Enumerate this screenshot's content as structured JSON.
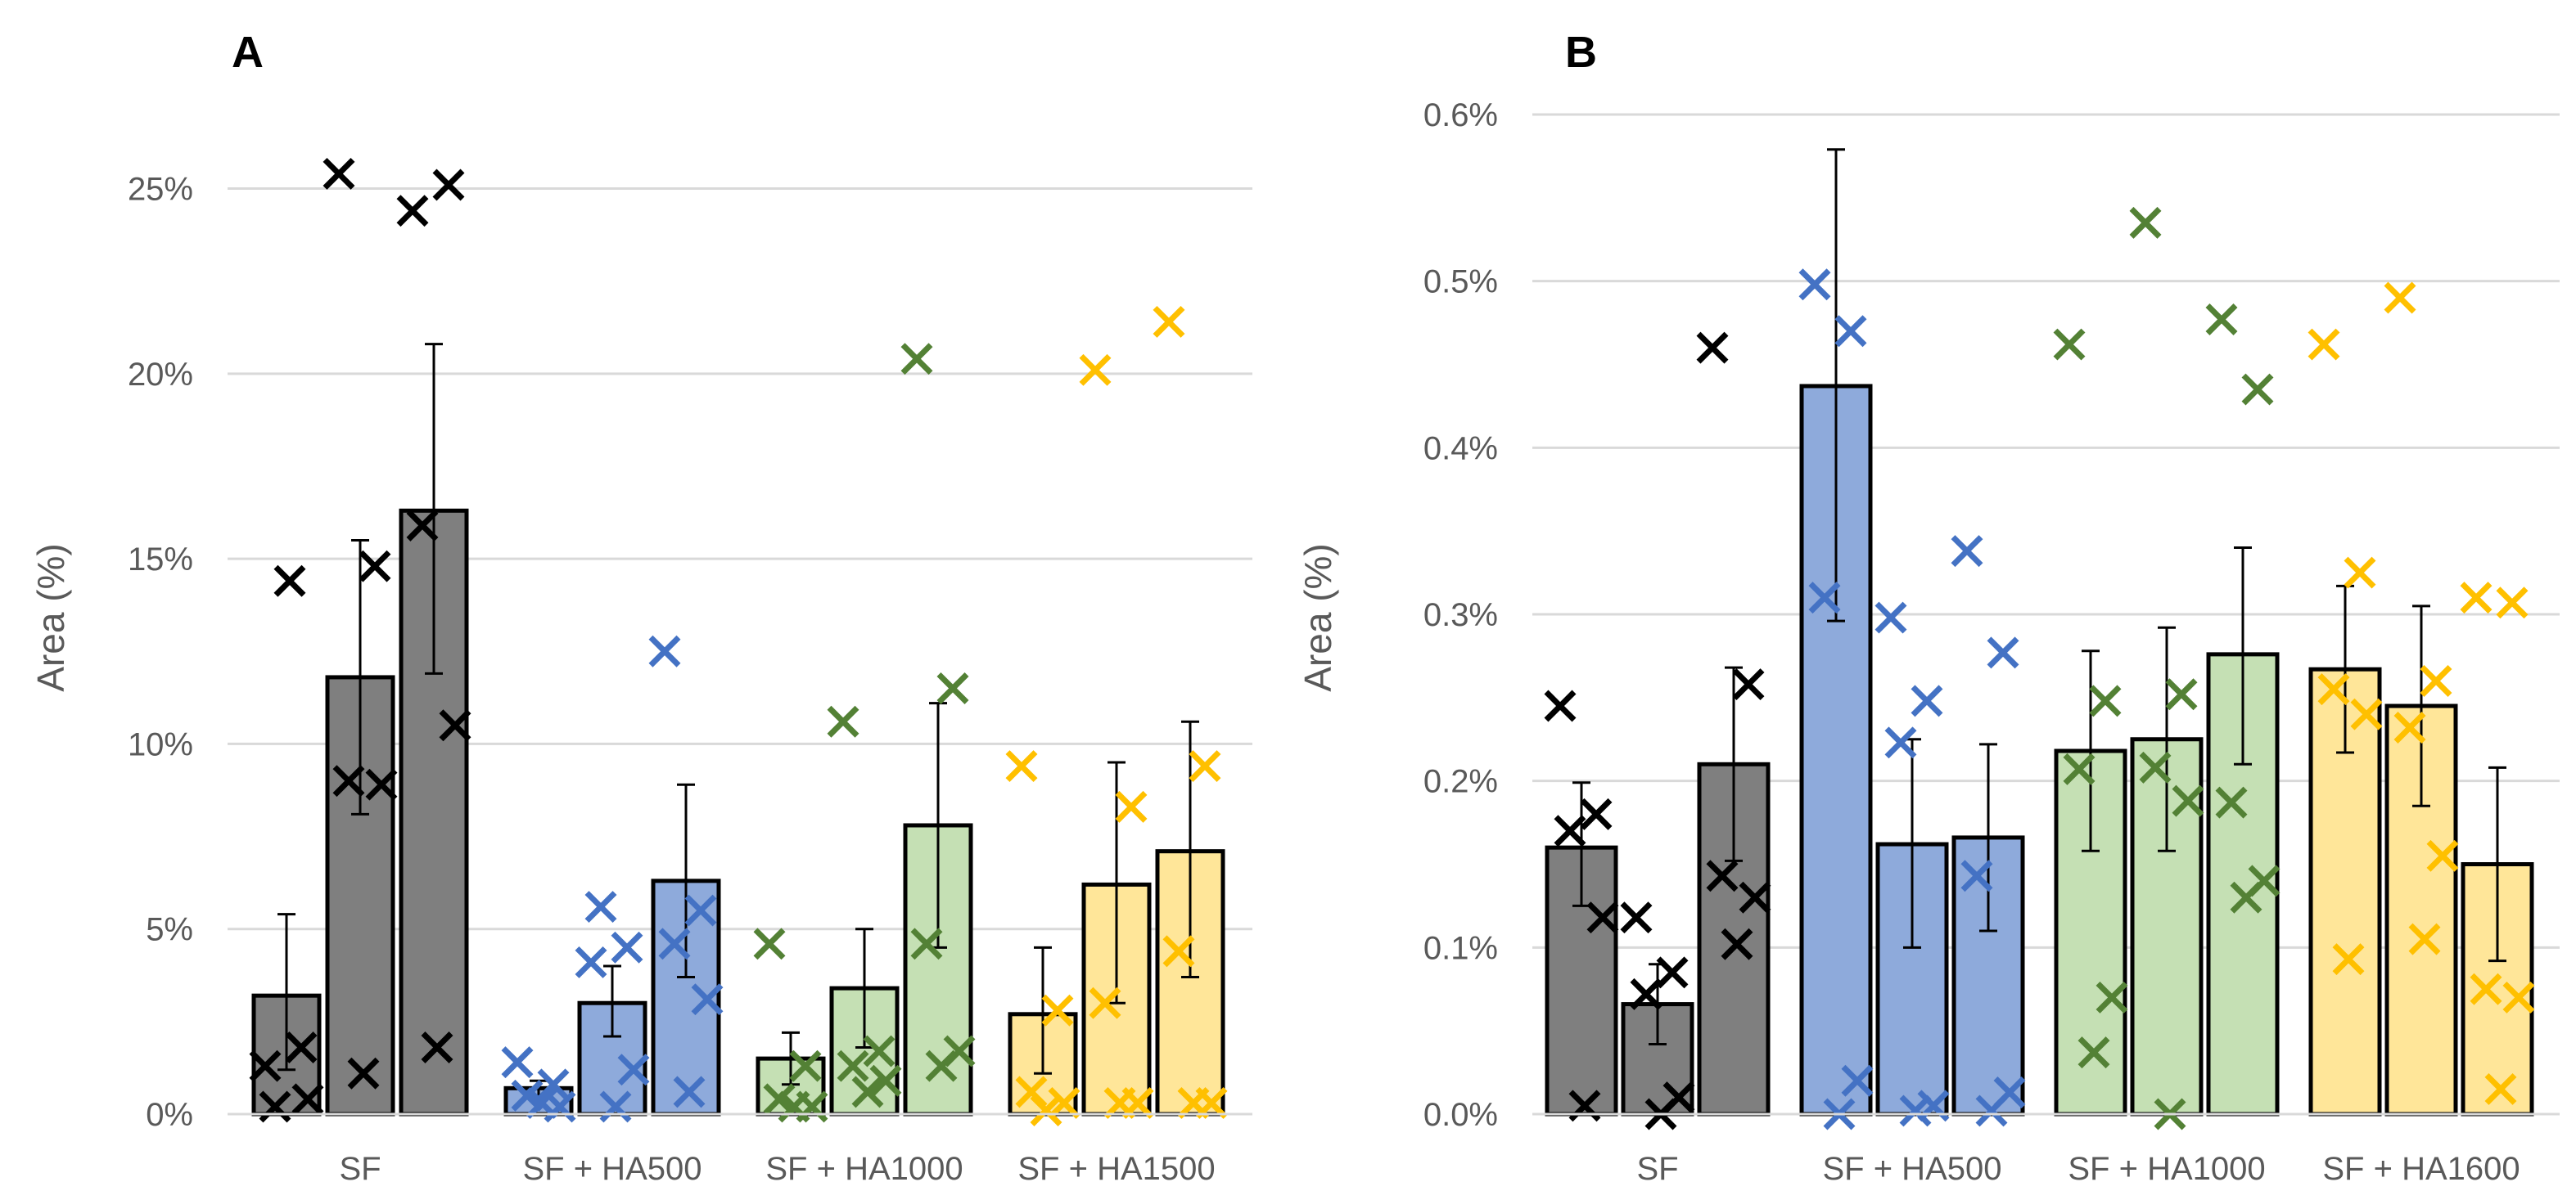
{
  "chart_data": [
    {
      "panel": "A",
      "type": "bar",
      "title": "",
      "ylabel": "Area (%)",
      "xlabel": "",
      "ylim": [
        0,
        27
      ],
      "yticks": [
        0,
        5,
        10,
        15,
        20,
        25
      ],
      "ytick_labels": [
        "0%",
        "5%",
        "10%",
        "15%",
        "20%",
        "25%"
      ],
      "grid": true,
      "categories": [
        "SF",
        "SF + HA500",
        "SF + HA1000",
        "SF + HA1500"
      ],
      "groups": [
        {
          "category": "SF",
          "color": "#7f7f7f",
          "marker_color": "#000000",
          "bars": [
            {
              "value": 3.2,
              "err_low": 1.2,
              "err_high": 5.4,
              "points": [
                1.3,
                1.8,
                0.2,
                0.4,
                14.4
              ]
            },
            {
              "value": 11.8,
              "err_low": 8.1,
              "err_high": 15.5,
              "points": [
                25.4,
                14.8,
                9.0,
                8.9,
                1.1
              ]
            },
            {
              "value": 16.3,
              "err_low": 11.9,
              "err_high": 20.8,
              "points": [
                24.4,
                25.1,
                15.9,
                10.5,
                1.8
              ]
            }
          ]
        },
        {
          "category": "SF + HA500",
          "color": "#8eaadb",
          "marker_color": "#4472c4",
          "bars": [
            {
              "value": 0.7,
              "err_low": 0.5,
              "err_high": 0.9,
              "points": [
                1.4,
                0.8,
                0.5,
                0.2,
                0.3
              ]
            },
            {
              "value": 3.0,
              "err_low": 2.1,
              "err_high": 4.0,
              "points": [
                4.1,
                4.5,
                5.6,
                1.2,
                0.2
              ]
            },
            {
              "value": 6.3,
              "err_low": 3.7,
              "err_high": 8.9,
              "points": [
                12.5,
                5.5,
                4.6,
                3.1,
                0.6
              ]
            }
          ]
        },
        {
          "category": "SF + HA1000",
          "color": "#c5e0b4",
          "marker_color": "#538135",
          "bars": [
            {
              "value": 1.5,
              "err_low": 0.8,
              "err_high": 2.2,
              "points": [
                4.6,
                1.3,
                0.4,
                0.2,
                0.2
              ]
            },
            {
              "value": 3.4,
              "err_low": 1.8,
              "err_high": 5.0,
              "points": [
                10.6,
                1.7,
                1.3,
                0.9,
                0.6
              ]
            },
            {
              "value": 7.8,
              "err_low": 4.5,
              "err_high": 11.1,
              "points": [
                20.4,
                11.5,
                4.6,
                1.7,
                1.3
              ]
            }
          ]
        },
        {
          "category": "SF + HA1500",
          "color": "#ffe699",
          "marker_color": "#ffc000",
          "bars": [
            {
              "value": 2.7,
              "err_low": 1.1,
              "err_high": 4.5,
              "points": [
                9.4,
                2.8,
                0.6,
                0.3,
                0.1
              ]
            },
            {
              "value": 6.2,
              "err_low": 3.0,
              "err_high": 9.5,
              "points": [
                20.1,
                8.3,
                3.0,
                0.3,
                0.3
              ]
            },
            {
              "value": 7.1,
              "err_low": 3.7,
              "err_high": 10.6,
              "points": [
                21.4,
                9.4,
                4.4,
                0.3,
                0.3
              ]
            }
          ]
        }
      ]
    },
    {
      "panel": "B",
      "type": "bar",
      "title": "",
      "ylabel": "Area (%)",
      "xlabel": "",
      "ylim": [
        0,
        0.6
      ],
      "yticks": [
        0,
        0.1,
        0.2,
        0.3,
        0.4,
        0.5,
        0.6
      ],
      "ytick_labels": [
        "0.0%",
        "0.1%",
        "0.2%",
        "0.3%",
        "0.4%",
        "0.5%",
        "0.6%"
      ],
      "grid": true,
      "categories": [
        "SF",
        "SF + HA500",
        "SF + HA1000",
        "SF + HA1600"
      ],
      "groups": [
        {
          "category": "SF",
          "color": "#7f7f7f",
          "marker_color": "#000000",
          "bars": [
            {
              "value": 0.16,
              "err_low": 0.125,
              "err_high": 0.199,
              "points": [
                0.245,
                0.18,
                0.17,
                0.118,
                0.005
              ]
            },
            {
              "value": 0.066,
              "err_low": 0.042,
              "err_high": 0.09,
              "points": [
                0.118,
                0.085,
                0.072,
                0.01,
                0.0
              ]
            },
            {
              "value": 0.21,
              "err_low": 0.152,
              "err_high": 0.268,
              "points": [
                0.46,
                0.258,
                0.143,
                0.13,
                0.102
              ]
            }
          ]
        },
        {
          "category": "SF + HA500",
          "color": "#8eaadb",
          "marker_color": "#4472c4",
          "bars": [
            {
              "value": 0.437,
              "err_low": 0.296,
              "err_high": 0.579,
              "points": [
                0.498,
                0.47,
                0.31,
                0.02,
                0.0
              ]
            },
            {
              "value": 0.162,
              "err_low": 0.1,
              "err_high": 0.225,
              "points": [
                0.298,
                0.248,
                0.223,
                0.005,
                0.002
              ]
            },
            {
              "value": 0.166,
              "err_low": 0.11,
              "err_high": 0.222,
              "points": [
                0.338,
                0.277,
                0.143,
                0.013,
                0.002
              ]
            }
          ]
        },
        {
          "category": "SF + HA1000",
          "color": "#c5e0b4",
          "marker_color": "#538135",
          "bars": [
            {
              "value": 0.218,
              "err_low": 0.158,
              "err_high": 0.278,
              "points": [
                0.462,
                0.248,
                0.207,
                0.07,
                0.037
              ]
            },
            {
              "value": 0.225,
              "err_low": 0.158,
              "err_high": 0.292,
              "points": [
                0.535,
                0.252,
                0.208,
                0.188,
                0.0
              ]
            },
            {
              "value": 0.276,
              "err_low": 0.21,
              "err_high": 0.34,
              "points": [
                0.477,
                0.435,
                0.187,
                0.14,
                0.13
              ]
            }
          ]
        },
        {
          "category": "SF + HA1600",
          "color": "#ffe699",
          "marker_color": "#ffc000",
          "bars": [
            {
              "value": 0.267,
              "err_low": 0.217,
              "err_high": 0.317,
              "points": [
                0.462,
                0.325,
                0.255,
                0.24,
                0.093
              ]
            },
            {
              "value": 0.245,
              "err_low": 0.185,
              "err_high": 0.305,
              "points": [
                0.49,
                0.26,
                0.232,
                0.155,
                0.105
              ]
            },
            {
              "value": 0.15,
              "err_low": 0.092,
              "err_high": 0.208,
              "points": [
                0.31,
                0.307,
                0.075,
                0.07,
                0.015
              ]
            }
          ]
        }
      ]
    }
  ]
}
